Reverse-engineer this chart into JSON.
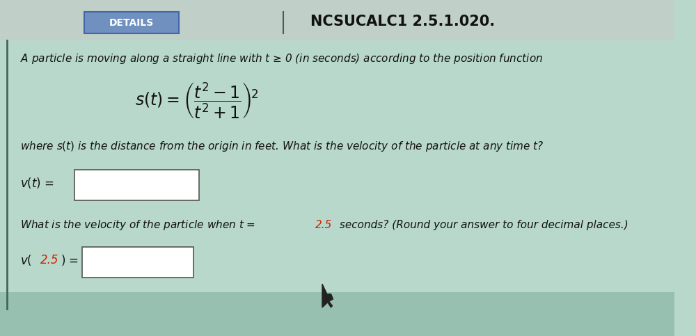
{
  "title": "NCSUCALC1 2.5.1.020.",
  "title_fontsize": 15,
  "bg_color_main": "#b8d8cc",
  "bg_color_top": "#c0d0c8",
  "bg_color_bottom": "#98c0b0",
  "text_color": "#111111",
  "red_color": "#cc2200",
  "box_color": "#ffffff",
  "box_border": "#555555"
}
